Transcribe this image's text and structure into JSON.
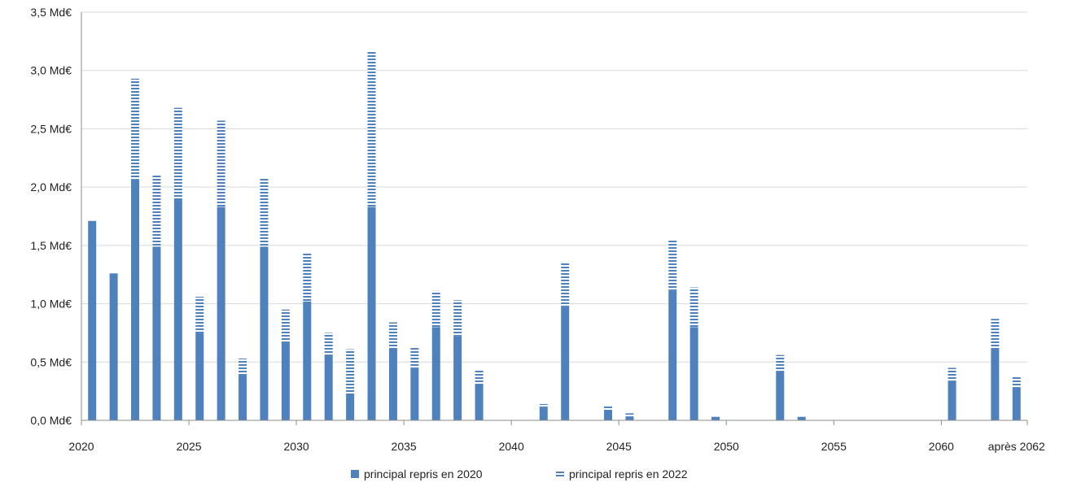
{
  "chart_data": {
    "type": "bar",
    "stacked": true,
    "title": "",
    "xlabel": "",
    "ylabel": "",
    "ylim": [
      0,
      3.5
    ],
    "y_ticks": [
      "0,0 Md€",
      "0,5 Md€",
      "1,0 Md€",
      "1,5 Md€",
      "2,0 Md€",
      "2,5 Md€",
      "3,0 Md€",
      "3,5 Md€"
    ],
    "x_ticks": [
      "2020",
      "2025",
      "2030",
      "2035",
      "2040",
      "2045",
      "2050",
      "2055",
      "2060",
      "après 2062"
    ],
    "grid": true,
    "legend_position": "bottom",
    "categories": [
      "2020",
      "2021",
      "2022",
      "2023",
      "2024",
      "2025",
      "2026",
      "2027",
      "2028",
      "2029",
      "2030",
      "2031",
      "2032",
      "2033",
      "2034",
      "2035",
      "2036",
      "2037",
      "2038",
      "2039",
      "2040",
      "2041",
      "2042",
      "2043",
      "2044",
      "2045",
      "2046",
      "2047",
      "2048",
      "2049",
      "2050",
      "2051",
      "2052",
      "2053",
      "2054",
      "2055",
      "2056",
      "2057",
      "2058",
      "2059",
      "2060",
      "2061",
      "2062",
      "après 2062"
    ],
    "series": [
      {
        "name": "principal repris en 2020",
        "color": "#4f81bd",
        "pattern": "solid",
        "values": [
          1.71,
          1.26,
          2.07,
          1.49,
          1.9,
          0.75,
          1.83,
          0.39,
          1.49,
          0.67,
          1.02,
          0.56,
          0.23,
          1.83,
          0.61,
          0.44,
          0.8,
          0.72,
          0.31,
          0,
          0,
          0.11,
          0.97,
          0,
          0.09,
          0.03,
          0,
          1.11,
          0.8,
          0.03,
          0,
          0,
          0.42,
          0.03,
          0,
          0,
          0,
          0,
          0,
          0,
          0.34,
          0,
          0.61,
          0.28
        ]
      },
      {
        "name": "principal repris en 2022",
        "color": "#4f81bd",
        "pattern": "horizontal-stripes",
        "values": [
          0,
          0,
          0.86,
          0.61,
          0.78,
          0.31,
          0.74,
          0.14,
          0.59,
          0.28,
          0.42,
          0.19,
          0.38,
          1.34,
          0.23,
          0.18,
          0.31,
          0.31,
          0.12,
          0,
          0,
          0.03,
          0.39,
          0,
          0.03,
          0.03,
          0,
          0.44,
          0.34,
          0,
          0,
          0,
          0.14,
          0,
          0,
          0,
          0,
          0,
          0,
          0,
          0.11,
          0,
          0.26,
          0.09
        ]
      }
    ]
  }
}
